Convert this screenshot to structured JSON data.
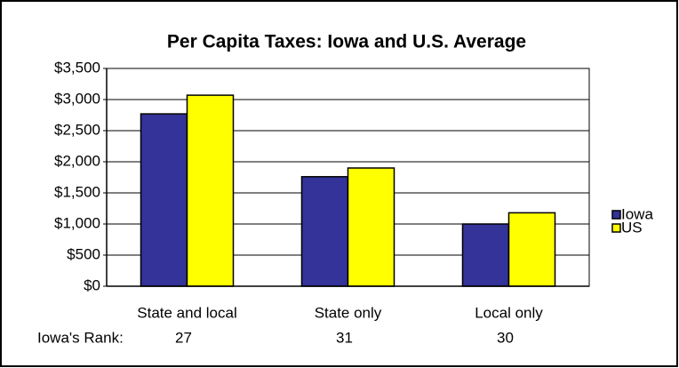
{
  "chart_data": {
    "type": "bar",
    "title": "Per Capita Taxes: Iowa and U.S. Average",
    "categories": [
      "State and local",
      "State only",
      "Local only"
    ],
    "series": [
      {
        "name": "Iowa",
        "color": "#333399",
        "values": [
          2770,
          1760,
          1000
        ]
      },
      {
        "name": "US",
        "color": "#ffff00",
        "values": [
          3070,
          1900,
          1180
        ]
      }
    ],
    "ylim": [
      0,
      3500
    ],
    "yticks": [
      {
        "value": 0,
        "label": "$0"
      },
      {
        "value": 500,
        "label": "$500"
      },
      {
        "value": 1000,
        "label": "$1,000"
      },
      {
        "value": 1500,
        "label": "$1,500"
      },
      {
        "value": 2000,
        "label": "$2,000"
      },
      {
        "value": 2500,
        "label": "$2,500"
      },
      {
        "value": 3000,
        "label": "$3,000"
      },
      {
        "value": 3500,
        "label": "$3,500"
      }
    ],
    "grid": true,
    "legend": "right",
    "rank_label": "Iowa's Rank:",
    "ranks": [
      27,
      31,
      30
    ]
  }
}
